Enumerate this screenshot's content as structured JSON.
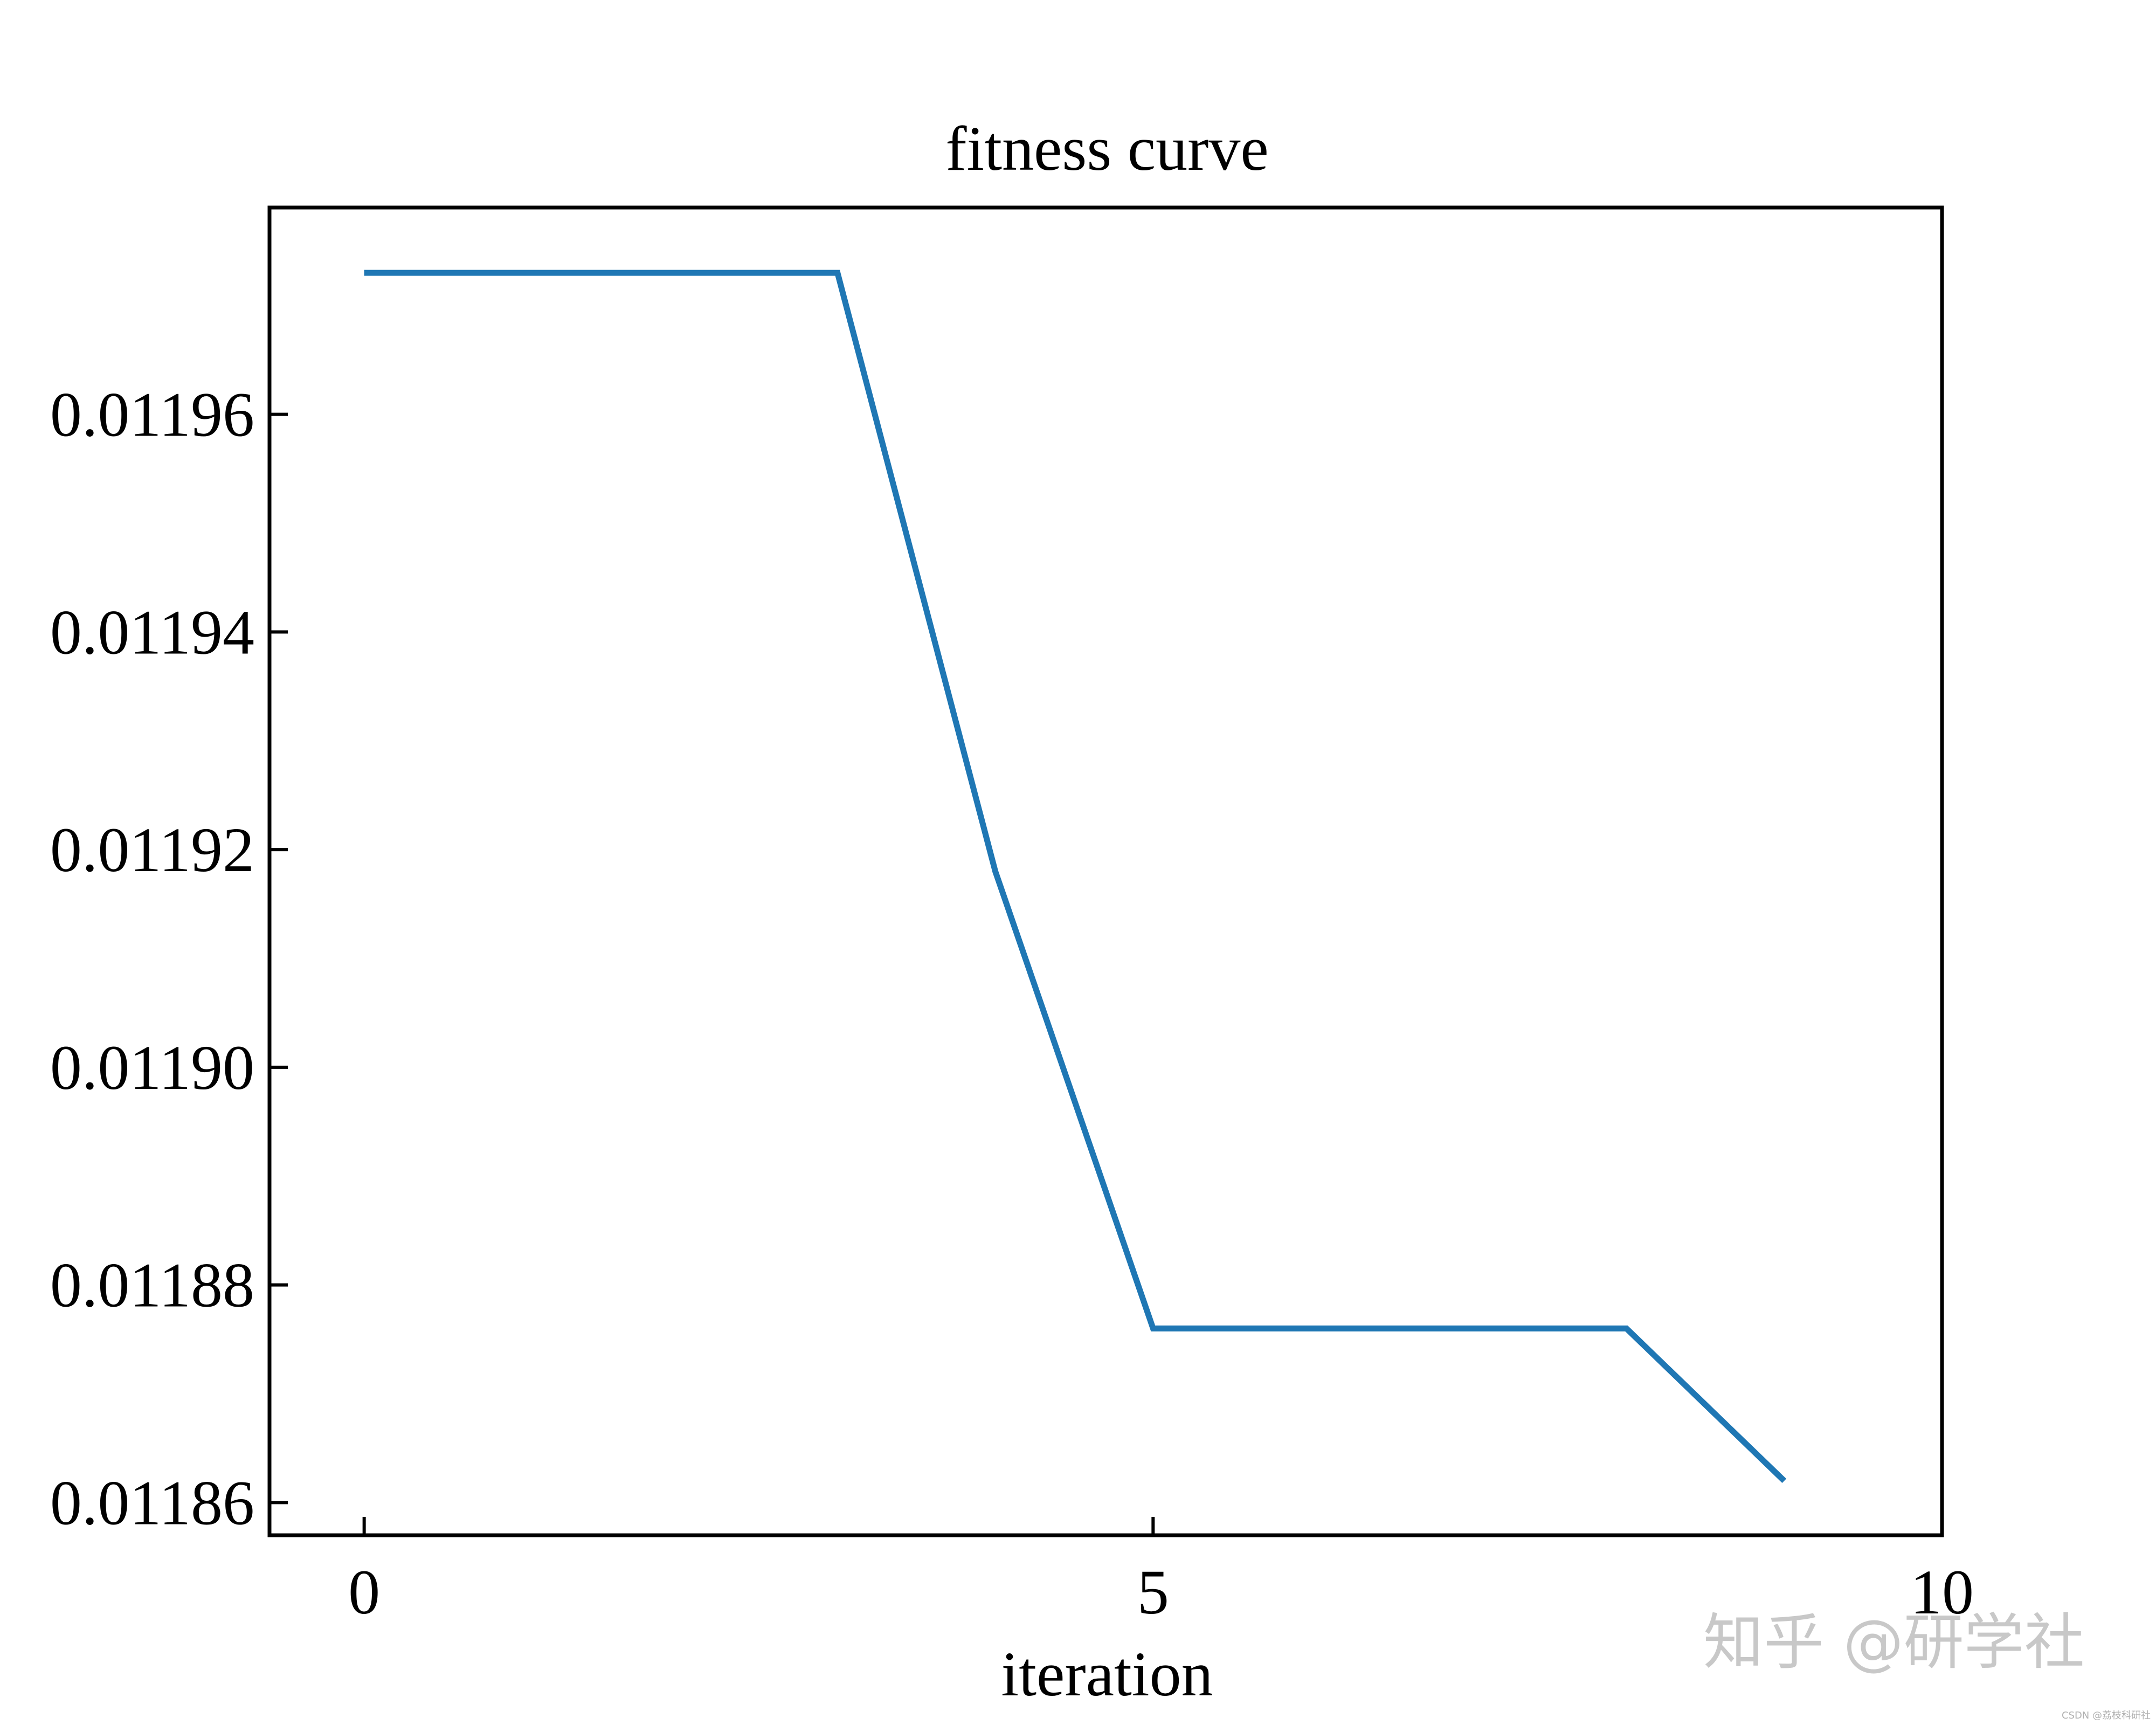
{
  "chart_data": {
    "type": "line",
    "title": "fitness curve",
    "xlabel": "iteration",
    "ylabel": "",
    "xlim": [
      -0.6,
      10
    ],
    "ylim": [
      0.011857,
      0.011979
    ],
    "xticks": [
      0,
      5,
      10
    ],
    "xtick_labels": [
      "0",
      "5",
      "10"
    ],
    "yticks": [
      0.01186,
      0.01188,
      0.0119,
      0.01192,
      0.01194,
      0.01196
    ],
    "ytick_labels": [
      "0.01186",
      "0.01188",
      "0.01190",
      "0.01192",
      "0.01194",
      "0.01196"
    ],
    "grid": false,
    "legend": "none",
    "series": [
      {
        "color": "#1f77b4",
        "x": [
          0,
          1,
          2,
          3,
          4,
          5,
          6,
          7,
          8,
          9
        ],
        "y": [
          0.011973,
          0.011973,
          0.011973,
          0.011973,
          0.011918,
          0.011876,
          0.011876,
          0.011876,
          0.011876,
          0.011862
        ]
      }
    ]
  },
  "watermark": {
    "main": "知乎 @研学社",
    "small": "CSDN @荔枝科研社"
  }
}
